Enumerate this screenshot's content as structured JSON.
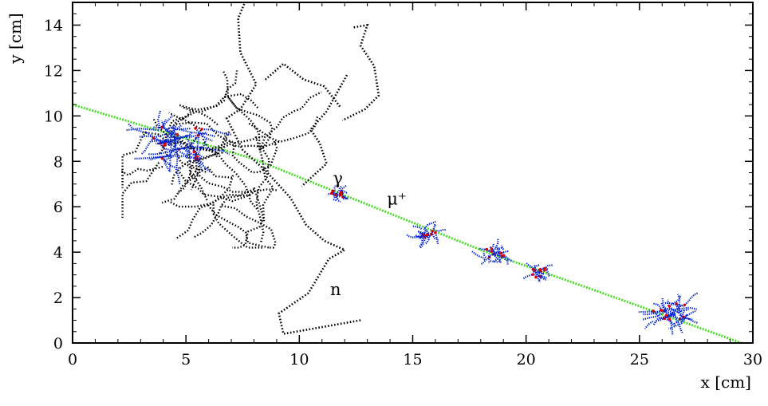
{
  "chart_data": {
    "type": "scatter",
    "xlabel": "x [cm]",
    "ylabel": "y [cm]",
    "xlim": [
      0,
      30
    ],
    "ylim": [
      0,
      15
    ],
    "x_ticks": [
      "0",
      "5",
      "10",
      "15",
      "20",
      "25",
      "30"
    ],
    "y_ticks": [
      "0",
      "2",
      "4",
      "6",
      "8",
      "10",
      "12",
      "14"
    ],
    "grid": false,
    "annotations": [
      {
        "text": "γ",
        "x": 11.7,
        "y": 7.0
      },
      {
        "text": "μ⁺",
        "x": 14.3,
        "y": 6.1
      },
      {
        "text": "n",
        "x": 11.6,
        "y": 2.1
      }
    ],
    "series": [
      {
        "role": "muon-track",
        "color": "#44dd22",
        "style": "dotted",
        "points": [
          [
            0,
            10.5
          ],
          [
            8,
            8.1
          ],
          [
            18,
            4.1
          ],
          [
            24.5,
            1.8
          ],
          [
            29.5,
            0
          ]
        ]
      },
      {
        "role": "neutron-track",
        "color": "#000000",
        "style": "dotted",
        "points": [
          [
            12.7,
            1.0
          ],
          [
            9.3,
            0.4
          ],
          [
            9.1,
            1.3
          ],
          [
            10.4,
            2.2
          ],
          [
            11.3,
            3.7
          ],
          [
            12.0,
            4.1
          ],
          [
            11.1,
            4.5
          ],
          [
            10.3,
            5.2
          ],
          [
            9.6,
            6.4
          ],
          [
            8.5,
            7.6
          ],
          [
            7.5,
            8.5
          ],
          [
            6.8,
            9.9
          ],
          [
            7.4,
            10.3
          ],
          [
            8.1,
            11.4
          ],
          [
            7.4,
            12.8
          ],
          [
            7.3,
            14.3
          ],
          [
            7.6,
            15.0
          ]
        ]
      },
      {
        "role": "secondary-track",
        "color": "#000000",
        "style": "dotted",
        "points": [
          [
            12.1,
            11.8
          ],
          [
            11.2,
            10.2
          ],
          [
            10.5,
            9.4
          ],
          [
            10.9,
            8.8
          ],
          [
            11.2,
            7.9
          ],
          [
            10.1,
            6.9
          ]
        ]
      },
      {
        "role": "secondary-track",
        "color": "#000000",
        "style": "dotted",
        "points": [
          [
            8.5,
            11.6
          ],
          [
            9.3,
            12.3
          ],
          [
            10.2,
            11.6
          ],
          [
            11.1,
            11.3
          ],
          [
            11.8,
            10.4
          ]
        ]
      },
      {
        "role": "secondary-track",
        "color": "#000000",
        "style": "dotted",
        "points": [
          [
            12.4,
            13.9
          ],
          [
            13.0,
            14.0
          ],
          [
            12.7,
            13.1
          ],
          [
            13.3,
            12.2
          ],
          [
            13.5,
            10.9
          ],
          [
            12.9,
            10.3
          ],
          [
            11.9,
            9.8
          ]
        ]
      }
    ],
    "showers": [
      {
        "center": [
          4.6,
          8.8
        ],
        "extent": 2.6,
        "color": "#0022cc"
      },
      {
        "center": [
          26.3,
          1.3
        ],
        "extent": 1.6,
        "color": "#0022cc"
      },
      {
        "center": [
          18.6,
          3.9
        ],
        "extent": 1.0,
        "color": "#0022cc"
      },
      {
        "center": [
          15.6,
          4.8
        ],
        "extent": 0.9,
        "color": "#0022cc"
      },
      {
        "center": [
          20.6,
          3.1
        ],
        "extent": 0.7,
        "color": "#0022cc"
      },
      {
        "center": [
          11.7,
          6.5
        ],
        "extent": 0.7,
        "color": "#0022cc"
      }
    ],
    "colors": {
      "muon": "#44dd22",
      "neutron": "#000000",
      "electron": "#0022cc",
      "energy_deposit": "#dd0000",
      "frame": "#000000"
    }
  }
}
